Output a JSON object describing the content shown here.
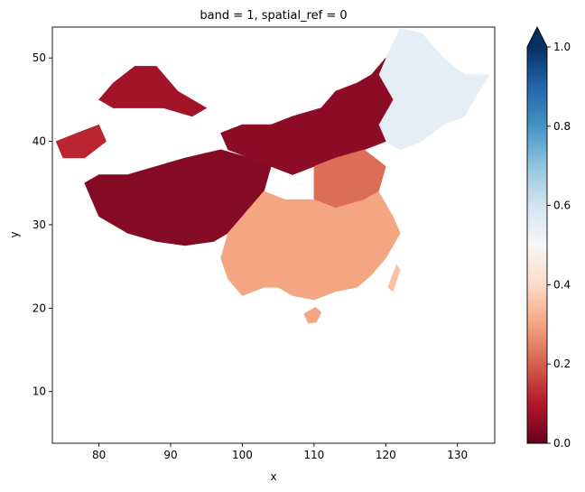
{
  "chart_data": {
    "type": "heatmap",
    "title": "band = 1, spatial_ref = 0",
    "xlabel": "x",
    "ylabel": "y",
    "xlim": [
      73.5,
      135.2
    ],
    "ylim": [
      3.8,
      53.7
    ],
    "xticks": [
      80,
      90,
      100,
      110,
      120,
      130
    ],
    "yticks": [
      10,
      20,
      30,
      40,
      50
    ],
    "colorbar": {
      "colormap": "RdBu",
      "range": [
        0.0,
        1.0
      ],
      "ticks": [
        "0.0",
        "0.2",
        "0.4",
        "0.6",
        "0.8",
        "1.0"
      ],
      "extend": "max"
    },
    "colormap_stops": [
      "#67001f",
      "#b2182b",
      "#d6604d",
      "#f4a582",
      "#fddbc7",
      "#f7f7f7",
      "#d1e5f0",
      "#92c5de",
      "#4393c3",
      "#2166ac",
      "#053061"
    ],
    "regions": [
      {
        "id": "northeast",
        "value": 0.55,
        "points": [
          [
            120,
            50
          ],
          [
            122,
            53.5
          ],
          [
            125,
            53
          ],
          [
            128,
            50
          ],
          [
            131,
            48
          ],
          [
            134.5,
            48
          ],
          [
            133,
            46
          ],
          [
            131,
            43
          ],
          [
            128,
            42
          ],
          [
            125,
            40
          ],
          [
            122,
            39
          ],
          [
            120,
            40
          ],
          [
            119,
            42
          ],
          [
            121,
            45
          ],
          [
            119,
            48
          ]
        ]
      },
      {
        "id": "inner-mongolia",
        "value": 0.05,
        "points": [
          [
            97,
            41
          ],
          [
            100,
            42
          ],
          [
            104,
            42
          ],
          [
            107,
            43
          ],
          [
            111,
            44
          ],
          [
            113,
            46
          ],
          [
            116,
            47
          ],
          [
            118,
            48
          ],
          [
            120,
            50
          ],
          [
            119,
            48
          ],
          [
            121,
            45
          ],
          [
            119,
            42
          ],
          [
            120,
            40
          ],
          [
            117,
            39
          ],
          [
            113,
            38
          ],
          [
            110,
            37
          ],
          [
            107,
            36
          ],
          [
            104,
            37
          ],
          [
            101,
            38
          ],
          [
            98,
            39
          ]
        ]
      },
      {
        "id": "north-china-plain",
        "value": 0.22,
        "points": [
          [
            110,
            37
          ],
          [
            113,
            38
          ],
          [
            117,
            39
          ],
          [
            120,
            37
          ],
          [
            119,
            34
          ],
          [
            117,
            33
          ],
          [
            113,
            32
          ],
          [
            110,
            33
          ]
        ]
      },
      {
        "id": "xinjiang-north",
        "value": 0.08,
        "points": [
          [
            80,
            45
          ],
          [
            82,
            47
          ],
          [
            85,
            49
          ],
          [
            88,
            49
          ],
          [
            91,
            46
          ],
          [
            95,
            44
          ],
          [
            93,
            43
          ],
          [
            89,
            44
          ],
          [
            85,
            44
          ],
          [
            82,
            44
          ]
        ]
      },
      {
        "id": "xinjiang-west",
        "value": 0.12,
        "points": [
          [
            74,
            40
          ],
          [
            77,
            41
          ],
          [
            80,
            42
          ],
          [
            81,
            40
          ],
          [
            78,
            38
          ],
          [
            75,
            38
          ]
        ]
      },
      {
        "id": "tibet-plateau",
        "value": 0.04,
        "points": [
          [
            78,
            35
          ],
          [
            80,
            36
          ],
          [
            84,
            36
          ],
          [
            88,
            37
          ],
          [
            92,
            38
          ],
          [
            97,
            39
          ],
          [
            101,
            38
          ],
          [
            104,
            37
          ],
          [
            103,
            34
          ],
          [
            100,
            31
          ],
          [
            98,
            29
          ],
          [
            96,
            28
          ],
          [
            92,
            27.5
          ],
          [
            88,
            28
          ],
          [
            84,
            29
          ],
          [
            80,
            31
          ]
        ]
      },
      {
        "id": "sichuan-basin",
        "value": 0.32,
        "points": [
          [
            102,
            32
          ],
          [
            106,
            33
          ],
          [
            109,
            32
          ],
          [
            110,
            30
          ],
          [
            108,
            28
          ],
          [
            104,
            28
          ]
        ]
      },
      {
        "id": "south-china",
        "value": 0.3,
        "points": [
          [
            98,
            29
          ],
          [
            100,
            31
          ],
          [
            103,
            34
          ],
          [
            106,
            33
          ],
          [
            110,
            33
          ],
          [
            113,
            32
          ],
          [
            117,
            33
          ],
          [
            119,
            34
          ],
          [
            121,
            31
          ],
          [
            122,
            29
          ],
          [
            120,
            26
          ],
          [
            118,
            24
          ],
          [
            116,
            22.5
          ],
          [
            113,
            22
          ],
          [
            110,
            21
          ],
          [
            107,
            21.5
          ],
          [
            105,
            22.5
          ],
          [
            103,
            22.5
          ],
          [
            100,
            21.5
          ],
          [
            98,
            23.5
          ],
          [
            97,
            26
          ]
        ]
      },
      {
        "id": "hainan",
        "value": 0.3,
        "points": [
          [
            108.6,
            19.3
          ],
          [
            110.2,
            20.1
          ],
          [
            111,
            19.5
          ],
          [
            110.3,
            18.3
          ],
          [
            109.2,
            18.2
          ]
        ]
      },
      {
        "id": "taiwan",
        "value": 0.35,
        "points": [
          [
            120.3,
            22.5
          ],
          [
            121.5,
            25.2
          ],
          [
            122,
            24.6
          ],
          [
            121,
            22
          ]
        ]
      }
    ]
  }
}
